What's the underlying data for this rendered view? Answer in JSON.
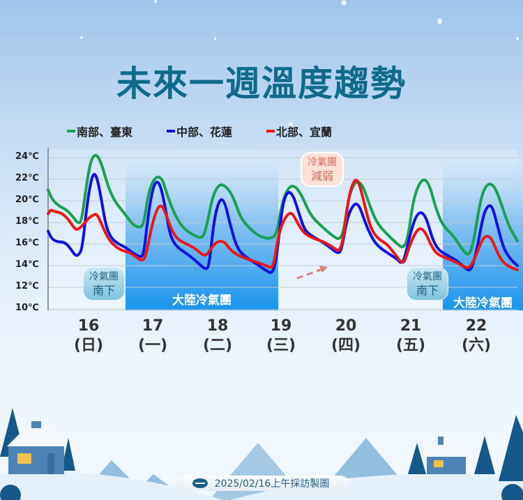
{
  "title": "未來一週溫度趨勢",
  "legend": [
    {
      "label": "南部、臺東",
      "color": "#1aa052"
    },
    {
      "label": "中部、花蓮",
      "color": "#1010e0"
    },
    {
      "label": "北部、宜蘭",
      "color": "#e81818"
    }
  ],
  "annotations": {
    "cold_south_1": {
      "line1": "冷氣團",
      "line2": "南下"
    },
    "cold_weaken": {
      "line1": "冷氣團",
      "line2": "減弱"
    },
    "cold_south_2": {
      "line1": "冷氣團",
      "line2": "南下"
    },
    "band_1_label": "大陸冷氣團",
    "band_2_label": "大陸冷氣團"
  },
  "footer": {
    "text": "2025/02/16上午採訪製圖"
  },
  "chart_data": {
    "type": "line",
    "title": "未來一週溫度趨勢",
    "xlabel": "",
    "ylabel": "",
    "ylim": [
      10,
      24
    ],
    "yticks": [
      "24℃",
      "22℃",
      "20℃",
      "18℃",
      "16℃",
      "14℃",
      "12℃",
      "10℃"
    ],
    "categories": [
      {
        "day": "16",
        "weekday": "(日)"
      },
      {
        "day": "17",
        "weekday": "(一)"
      },
      {
        "day": "18",
        "weekday": "(二)"
      },
      {
        "day": "19",
        "weekday": "(三)"
      },
      {
        "day": "20",
        "weekday": "(四)"
      },
      {
        "day": "21",
        "weekday": "(五)"
      },
      {
        "day": "22",
        "weekday": "(六)"
      }
    ],
    "grid": true,
    "legend_position": "top",
    "shaded_bands": [
      {
        "label": "大陸冷氣團",
        "from_day": "17",
        "to_day": "19"
      },
      {
        "label": "大陸冷氣團",
        "from_day": "22",
        "to_day": "22"
      }
    ],
    "series": [
      {
        "name": "南部、臺東",
        "color": "#1aa052",
        "daily_max": [
          24.4,
          22.3,
          21.5,
          21.6,
          21.8,
          22.1,
          21.7
        ],
        "daily_min": [
          17.8,
          17.5,
          16.5,
          16.5,
          16.2,
          15.6,
          14.9
        ],
        "points": [
          [
            69,
            21.0
          ],
          [
            75,
            20.1
          ],
          [
            85,
            19.5
          ],
          [
            95,
            19.2
          ],
          [
            105,
            18.5
          ],
          [
            112,
            17.9
          ],
          [
            117,
            18.1
          ],
          [
            124,
            21.5
          ],
          [
            130,
            23.7
          ],
          [
            137,
            24.4
          ],
          [
            145,
            23.6
          ],
          [
            155,
            21.3
          ],
          [
            165,
            19.9
          ],
          [
            178,
            18.9
          ],
          [
            190,
            17.8
          ],
          [
            200,
            17.5
          ],
          [
            206,
            17.8
          ],
          [
            213,
            20.8
          ],
          [
            222,
            22.2
          ],
          [
            232,
            22.2
          ],
          [
            240,
            20.5
          ],
          [
            250,
            18.8
          ],
          [
            262,
            17.5
          ],
          [
            278,
            16.8
          ],
          [
            290,
            16.5
          ],
          [
            296,
            17.5
          ],
          [
            305,
            20.5
          ],
          [
            315,
            21.6
          ],
          [
            325,
            21.3
          ],
          [
            335,
            20.3
          ],
          [
            345,
            18.4
          ],
          [
            360,
            17.3
          ],
          [
            375,
            16.6
          ],
          [
            390,
            16.5
          ],
          [
            397,
            17.0
          ],
          [
            405,
            20.0
          ],
          [
            415,
            21.4
          ],
          [
            425,
            21.3
          ],
          [
            435,
            20.2
          ],
          [
            445,
            18.7
          ],
          [
            460,
            17.7
          ],
          [
            478,
            16.7
          ],
          [
            487,
            16.4
          ],
          [
            493,
            17.2
          ],
          [
            500,
            20.4
          ],
          [
            510,
            21.9
          ],
          [
            520,
            21.5
          ],
          [
            530,
            19.6
          ],
          [
            540,
            18.0
          ],
          [
            555,
            16.9
          ],
          [
            570,
            16.0
          ],
          [
            578,
            15.6
          ],
          [
            585,
            16.5
          ],
          [
            593,
            20.3
          ],
          [
            605,
            22.1
          ],
          [
            615,
            21.7
          ],
          [
            625,
            19.3
          ],
          [
            635,
            17.7
          ],
          [
            650,
            16.8
          ],
          [
            665,
            15.3
          ],
          [
            673,
            14.9
          ],
          [
            680,
            16.5
          ],
          [
            690,
            20.5
          ],
          [
            700,
            21.7
          ],
          [
            710,
            21.3
          ],
          [
            720,
            19.5
          ],
          [
            730,
            17.6
          ],
          [
            742,
            16.3
          ]
        ]
      },
      {
        "name": "中部、花蓮",
        "color": "#1010e0",
        "daily_max": [
          22.7,
          21.9,
          20.3,
          21.1,
          19.8,
          19.0,
          19.6
        ],
        "daily_min": [
          14.8,
          14.6,
          13.5,
          13.2,
          15.1,
          14.2,
          13.5
        ],
        "points": [
          [
            69,
            17.2
          ],
          [
            74,
            16.5
          ],
          [
            82,
            16.2
          ],
          [
            92,
            16.2
          ],
          [
            100,
            15.7
          ],
          [
            108,
            14.9
          ],
          [
            113,
            15.0
          ],
          [
            118,
            15.6
          ],
          [
            125,
            19.8
          ],
          [
            132,
            22.4
          ],
          [
            138,
            22.5
          ],
          [
            145,
            20.3
          ],
          [
            152,
            17.6
          ],
          [
            160,
            16.5
          ],
          [
            170,
            16.0
          ],
          [
            180,
            15.7
          ],
          [
            190,
            15.2
          ],
          [
            200,
            14.8
          ],
          [
            206,
            14.9
          ],
          [
            212,
            18.5
          ],
          [
            220,
            21.5
          ],
          [
            228,
            21.9
          ],
          [
            236,
            19.8
          ],
          [
            244,
            16.7
          ],
          [
            254,
            15.7
          ],
          [
            266,
            15.2
          ],
          [
            280,
            14.5
          ],
          [
            295,
            13.6
          ],
          [
            300,
            14.0
          ],
          [
            307,
            18.3
          ],
          [
            315,
            20.2
          ],
          [
            322,
            20.0
          ],
          [
            330,
            17.8
          ],
          [
            340,
            15.6
          ],
          [
            352,
            14.8
          ],
          [
            365,
            14.3
          ],
          [
            380,
            13.6
          ],
          [
            392,
            13.2
          ],
          [
            398,
            15.5
          ],
          [
            405,
            19.6
          ],
          [
            412,
            20.9
          ],
          [
            420,
            20.6
          ],
          [
            428,
            19.0
          ],
          [
            436,
            17.4
          ],
          [
            445,
            16.8
          ],
          [
            460,
            16.3
          ],
          [
            475,
            15.6
          ],
          [
            485,
            15.1
          ],
          [
            490,
            15.5
          ],
          [
            498,
            18.5
          ],
          [
            508,
            19.8
          ],
          [
            515,
            19.6
          ],
          [
            522,
            18.3
          ],
          [
            530,
            17.0
          ],
          [
            540,
            15.9
          ],
          [
            555,
            15.2
          ],
          [
            570,
            14.6
          ],
          [
            575,
            14.2
          ],
          [
            580,
            14.6
          ],
          [
            588,
            16.9
          ],
          [
            597,
            18.7
          ],
          [
            605,
            19.0
          ],
          [
            612,
            18.3
          ],
          [
            620,
            16.5
          ],
          [
            628,
            15.5
          ],
          [
            640,
            15.0
          ],
          [
            655,
            14.5
          ],
          [
            670,
            13.6
          ],
          [
            676,
            13.6
          ],
          [
            684,
            15.5
          ],
          [
            693,
            18.7
          ],
          [
            700,
            19.6
          ],
          [
            706,
            19.5
          ],
          [
            713,
            17.8
          ],
          [
            722,
            15.6
          ],
          [
            732,
            14.6
          ],
          [
            742,
            14.0
          ]
        ]
      },
      {
        "name": "北部、宜蘭",
        "color": "#e81818",
        "daily_max": [
          18.8,
          19.5,
          16.3,
          18.9,
          22.0,
          17.5,
          16.8
        ],
        "daily_min": [
          17.3,
          14.4,
          14.9,
          13.8,
          15.3,
          14.2,
          13.8
        ],
        "points": [
          [
            69,
            18.8
          ],
          [
            73,
            19.2
          ],
          [
            78,
            19.0
          ],
          [
            88,
            18.9
          ],
          [
            98,
            18.3
          ],
          [
            106,
            17.5
          ],
          [
            111,
            17.3
          ],
          [
            118,
            17.7
          ],
          [
            127,
            18.4
          ],
          [
            134,
            18.7
          ],
          [
            139,
            18.8
          ],
          [
            146,
            17.8
          ],
          [
            155,
            16.5
          ],
          [
            165,
            15.8
          ],
          [
            175,
            15.4
          ],
          [
            187,
            15.2
          ],
          [
            197,
            14.7
          ],
          [
            205,
            14.4
          ],
          [
            210,
            15.1
          ],
          [
            218,
            17.8
          ],
          [
            226,
            19.4
          ],
          [
            232,
            19.6
          ],
          [
            238,
            18.8
          ],
          [
            246,
            17.3
          ],
          [
            255,
            16.4
          ],
          [
            268,
            16.0
          ],
          [
            280,
            15.6
          ],
          [
            292,
            14.9
          ],
          [
            298,
            15.1
          ],
          [
            306,
            15.9
          ],
          [
            314,
            16.3
          ],
          [
            322,
            16.2
          ],
          [
            330,
            15.5
          ],
          [
            340,
            15.0
          ],
          [
            355,
            14.6
          ],
          [
            370,
            14.3
          ],
          [
            385,
            13.9
          ],
          [
            392,
            13.8
          ],
          [
            398,
            16.4
          ],
          [
            405,
            18.0
          ],
          [
            414,
            18.9
          ],
          [
            420,
            18.8
          ],
          [
            428,
            17.8
          ],
          [
            436,
            17.0
          ],
          [
            450,
            16.5
          ],
          [
            465,
            16.2
          ],
          [
            480,
            15.6
          ],
          [
            486,
            15.3
          ],
          [
            492,
            16.3
          ],
          [
            500,
            20.4
          ],
          [
            507,
            21.8
          ],
          [
            512,
            22.0
          ],
          [
            517,
            21.2
          ],
          [
            524,
            19.3
          ],
          [
            532,
            17.4
          ],
          [
            542,
            16.5
          ],
          [
            555,
            16.0
          ],
          [
            565,
            15.2
          ],
          [
            575,
            14.3
          ],
          [
            580,
            14.3
          ],
          [
            588,
            16.0
          ],
          [
            597,
            17.2
          ],
          [
            603,
            17.5
          ],
          [
            610,
            17.1
          ],
          [
            618,
            15.9
          ],
          [
            626,
            15.1
          ],
          [
            640,
            14.7
          ],
          [
            655,
            14.3
          ],
          [
            668,
            13.8
          ],
          [
            675,
            13.9
          ],
          [
            683,
            15.0
          ],
          [
            692,
            16.5
          ],
          [
            699,
            16.8
          ],
          [
            705,
            16.5
          ],
          [
            712,
            15.4
          ],
          [
            720,
            14.4
          ],
          [
            730,
            13.9
          ],
          [
            742,
            13.6
          ]
        ]
      }
    ]
  }
}
